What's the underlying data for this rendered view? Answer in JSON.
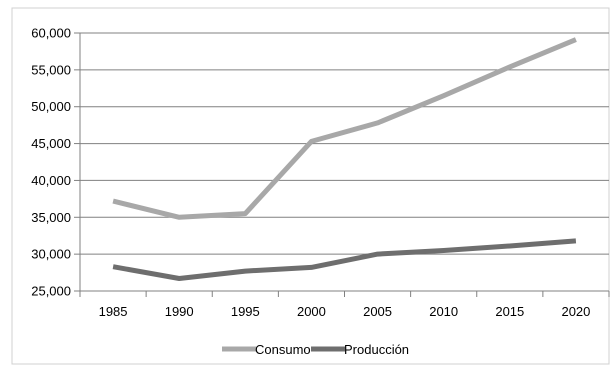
{
  "chart_data": {
    "type": "line",
    "title": "",
    "xlabel": "",
    "ylabel": "",
    "categories": [
      "1985",
      "1990",
      "1995",
      "2000",
      "2005",
      "2010",
      "2015",
      "2020"
    ],
    "ylim": [
      25000,
      60000
    ],
    "yticks": [
      "25,000",
      "30,000",
      "35,000",
      "40,000",
      "45,000",
      "50,000",
      "55,000",
      "60,000"
    ],
    "ytick_values": [
      25000,
      30000,
      35000,
      40000,
      45000,
      50000,
      55000,
      60000
    ],
    "grid": true,
    "legend_position": "bottom",
    "series": [
      {
        "name": "Consumo",
        "color": "#a8a8a8",
        "values": [
          37200,
          35000,
          35500,
          45300,
          47800,
          51500,
          55400,
          59100
        ]
      },
      {
        "name": "Producción",
        "color": "#6e6e6e",
        "values": [
          28300,
          26700,
          27700,
          28200,
          30000,
          30500,
          31100,
          31800
        ]
      }
    ]
  }
}
